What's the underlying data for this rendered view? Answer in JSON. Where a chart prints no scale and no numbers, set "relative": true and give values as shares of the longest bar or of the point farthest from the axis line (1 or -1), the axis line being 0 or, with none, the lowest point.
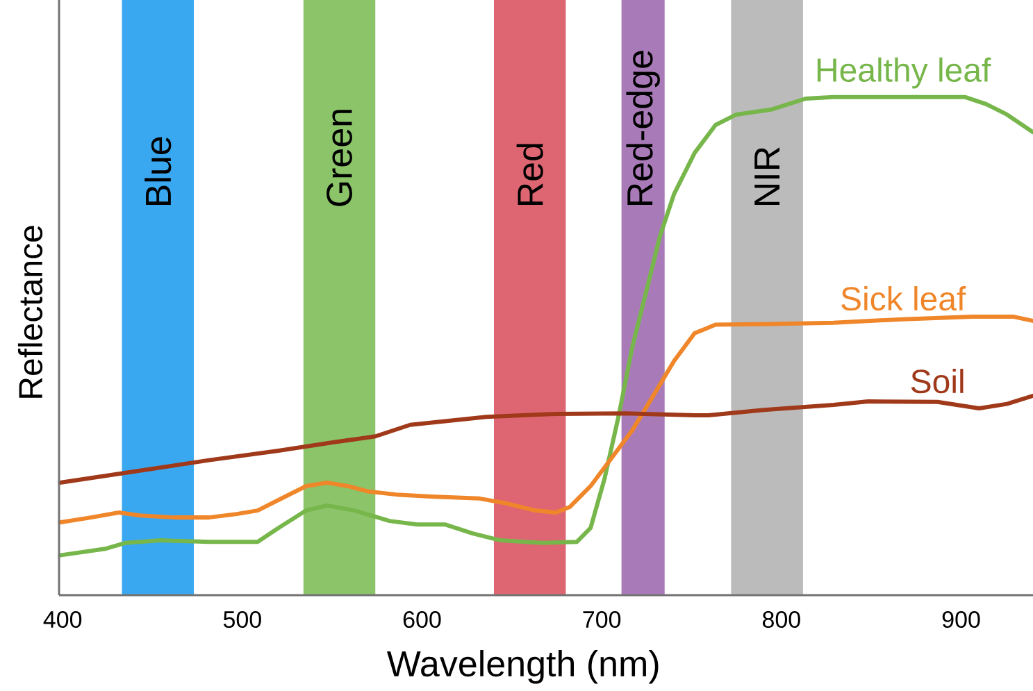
{
  "chart_data": {
    "type": "line",
    "relative": true,
    "xlabel": "Wavelength (nm)",
    "ylabel": "Reflectance",
    "xlim": [
      398,
      940
    ],
    "xticks": [
      400,
      500,
      600,
      700,
      800,
      900
    ],
    "bands": [
      {
        "axis": "x",
        "from": 433,
        "to": 473,
        "label": "Blue",
        "color": "#3aa8f0"
      },
      {
        "axis": "x",
        "from": 534,
        "to": 574,
        "label": "Green",
        "color": "#8cc46a"
      },
      {
        "axis": "x",
        "from": 640,
        "to": 680,
        "label": "Red",
        "color": "#de6672"
      },
      {
        "axis": "x",
        "from": 711,
        "to": 735,
        "label": "Red-edge",
        "color": "#a87bb8"
      },
      {
        "axis": "x",
        "from": 772,
        "to": 812,
        "label": "NIR",
        "color": "#bbbbbb"
      }
    ],
    "series": [
      {
        "name": "Healthy leaf",
        "color": "#77b64a",
        "x": [
          398.5,
          423.6,
          435.1,
          454.4,
          481.5,
          508.5,
          520.1,
          535.5,
          547.1,
          562.5,
          581.9,
          597.3,
          612.7,
          628.2,
          643.6,
          666.8,
          686.1,
          693.8,
          701.5,
          709.3,
          717.0,
          724.7,
          732.4,
          740.2,
          751.7,
          763.3,
          774.9,
          794.2,
          813.5,
          829.0,
          867.6,
          902.3,
          913.9,
          925.5,
          939.8
        ],
        "values": [
          0.08,
          0.093,
          0.105,
          0.11,
          0.107,
          0.107,
          0.135,
          0.17,
          0.18,
          0.17,
          0.149,
          0.142,
          0.142,
          0.124,
          0.11,
          0.105,
          0.107,
          0.135,
          0.233,
          0.358,
          0.498,
          0.609,
          0.721,
          0.805,
          0.888,
          0.944,
          0.965,
          0.975,
          0.997,
          1,
          1,
          1,
          0.986,
          0.965,
          0.93
        ]
      },
      {
        "name": "Sick leaf",
        "color": "#f0862a",
        "x": [
          398.5,
          415.8,
          431.3,
          442.9,
          462.2,
          481.5,
          496.9,
          508.5,
          523.9,
          535.5,
          547.1,
          558.7,
          570.3,
          585.7,
          605.0,
          632.0,
          647.5,
          662.9,
          674.5,
          682.2,
          693.8,
          705.4,
          717.0,
          728.6,
          740.2,
          751.7,
          763.3,
          790.3,
          829.0,
          867.6,
          906.2,
          929.3,
          939.8
        ],
        "values": [
          0.146,
          0.156,
          0.166,
          0.16,
          0.156,
          0.156,
          0.163,
          0.17,
          0.198,
          0.219,
          0.226,
          0.219,
          0.208,
          0.202,
          0.198,
          0.194,
          0.184,
          0.17,
          0.166,
          0.177,
          0.219,
          0.275,
          0.331,
          0.4,
          0.47,
          0.526,
          0.543,
          0.544,
          0.547,
          0.554,
          0.559,
          0.559,
          0.551
        ]
      },
      {
        "name": "Soil",
        "color": "#a0391a",
        "x": [
          398.5,
          442.9,
          481.5,
          520.1,
          551.0,
          574.1,
          593.4,
          635.9,
          674.5,
          713.1,
          751.7,
          759.5,
          790.3,
          829.0,
          848.3,
          886.9,
          910.0,
          925.5,
          939.8
        ],
        "values": [
          0.226,
          0.25,
          0.271,
          0.29,
          0.307,
          0.319,
          0.342,
          0.358,
          0.364,
          0.365,
          0.361,
          0.361,
          0.372,
          0.382,
          0.389,
          0.388,
          0.375,
          0.384,
          0.4
        ]
      }
    ]
  }
}
